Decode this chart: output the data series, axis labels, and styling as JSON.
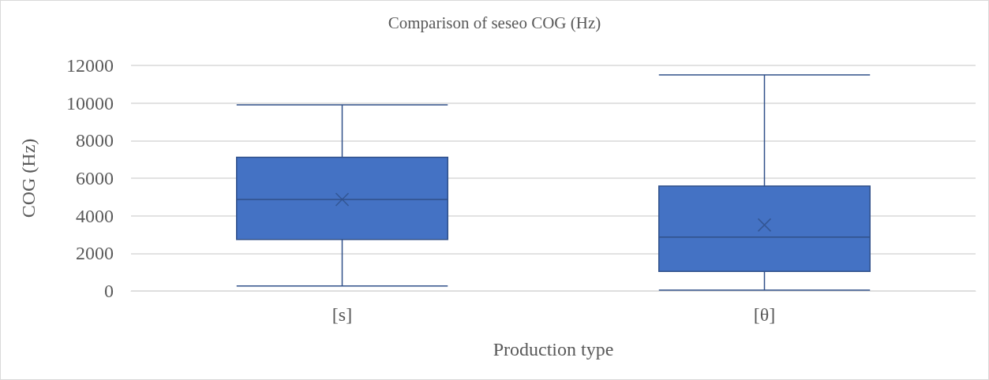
{
  "chart_data": {
    "type": "box",
    "title": "Comparison of seseo COG (Hz)",
    "xlabel": "Production type",
    "ylabel": "COG (Hz)",
    "categories": [
      "[s]",
      "[θ]"
    ],
    "series": [
      {
        "color": "#4472c4",
        "boxes": [
          {
            "low": 260,
            "q1": 2740,
            "median": 4870,
            "q3": 7110,
            "high": 9900,
            "mean": 4870
          },
          {
            "low": 40,
            "q1": 1040,
            "median": 2860,
            "q3": 5580,
            "high": 11500,
            "mean": 3510
          }
        ]
      }
    ],
    "ylim": [
      0,
      12000
    ],
    "yticks": [
      0,
      2000,
      4000,
      6000,
      8000,
      10000,
      12000
    ],
    "grid": "y"
  }
}
